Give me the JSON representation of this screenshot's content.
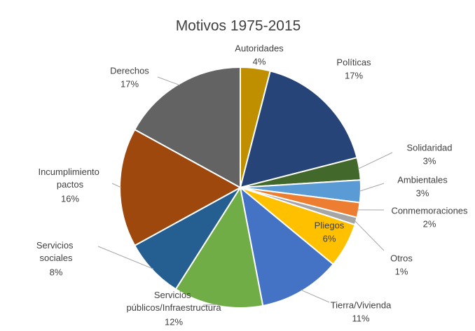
{
  "chart_data": {
    "type": "pie",
    "title": "Motivos 1975-2015",
    "categories": [
      "Autoridades",
      "Políticas",
      "Solidaridad",
      "Ambientales",
      "Conmemoraciones",
      "Otros",
      "Pliegos",
      "Tierra/Vivienda",
      "Servicios públicos/Infraestructura",
      "Servicios sociales",
      "Incumplimiento pactos",
      "Derechos"
    ],
    "values": [
      4,
      17,
      3,
      3,
      2,
      1,
      6,
      11,
      12,
      8,
      16,
      17
    ],
    "value_labels": [
      "4%",
      "17%",
      "3%",
      "3%",
      "2%",
      "1%",
      "6%",
      "11%",
      "12%",
      "8%",
      "16%",
      "17%"
    ],
    "colors": [
      "#bf8f00",
      "#264478",
      "#43682b",
      "#5b9bd5",
      "#ed7d31",
      "#a5a5a5",
      "#ffc000",
      "#4472c4",
      "#70ad47",
      "#255e91",
      "#9e480e",
      "#636363"
    ]
  }
}
